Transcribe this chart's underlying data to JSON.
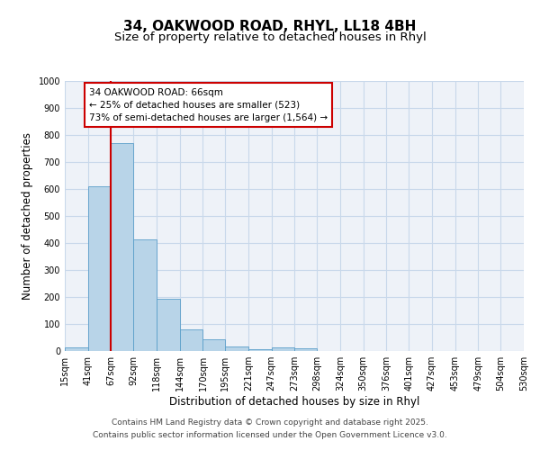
{
  "title": "34, OAKWOOD ROAD, RHYL, LL18 4BH",
  "subtitle": "Size of property relative to detached houses in Rhyl",
  "xlabel": "Distribution of detached houses by size in Rhyl",
  "ylabel": "Number of detached properties",
  "bin_labels": [
    "15sqm",
    "41sqm",
    "67sqm",
    "92sqm",
    "118sqm",
    "144sqm",
    "170sqm",
    "195sqm",
    "221sqm",
    "247sqm",
    "273sqm",
    "298sqm",
    "324sqm",
    "350sqm",
    "376sqm",
    "401sqm",
    "427sqm",
    "453sqm",
    "479sqm",
    "504sqm",
    "530sqm"
  ],
  "bin_edges": [
    15,
    41,
    67,
    92,
    118,
    144,
    170,
    195,
    221,
    247,
    273,
    298,
    324,
    350,
    376,
    401,
    427,
    453,
    479,
    504,
    530
  ],
  "bar_heights": [
    15,
    610,
    770,
    415,
    195,
    80,
    42,
    18,
    8,
    12,
    10,
    0,
    0,
    0,
    0,
    0,
    0,
    0,
    0,
    0
  ],
  "bar_color": "#b8d4e8",
  "bar_edge_color": "#5a9ec9",
  "property_size": 66,
  "vline_color": "#cc0000",
  "annotation_line1": "34 OAKWOOD ROAD: 66sqm",
  "annotation_line2": "← 25% of detached houses are smaller (523)",
  "annotation_line3": "73% of semi-detached houses are larger (1,564) →",
  "annotation_box_color": "#cc0000",
  "annotation_box_facecolor": "white",
  "ylim": [
    0,
    1000
  ],
  "yticks": [
    0,
    100,
    200,
    300,
    400,
    500,
    600,
    700,
    800,
    900,
    1000
  ],
  "grid_color": "#c8d8ea",
  "background_color": "#eef2f8",
  "footer_line1": "Contains HM Land Registry data © Crown copyright and database right 2025.",
  "footer_line2": "Contains public sector information licensed under the Open Government Licence v3.0.",
  "title_fontsize": 11,
  "subtitle_fontsize": 9.5,
  "axis_label_fontsize": 8.5,
  "tick_fontsize": 7,
  "annotation_fontsize": 7.5,
  "footer_fontsize": 6.5
}
